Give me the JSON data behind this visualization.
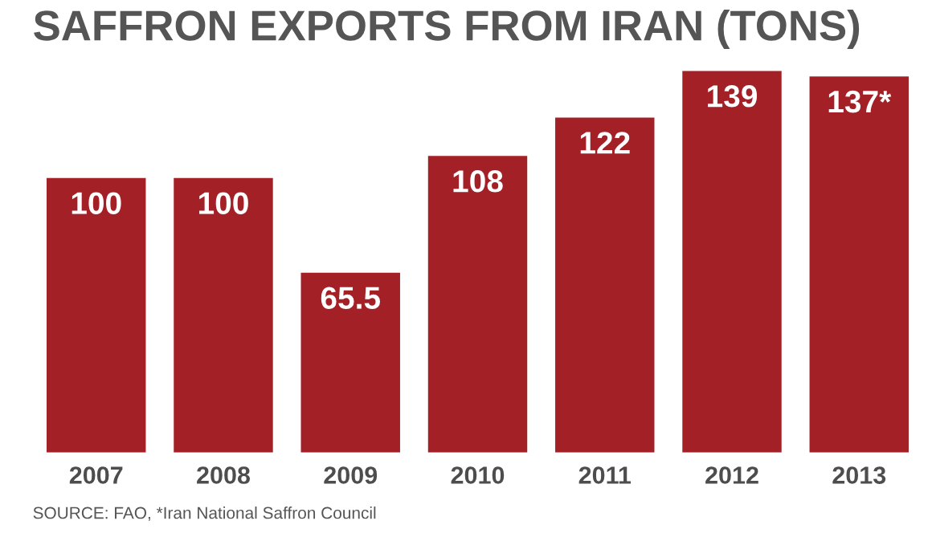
{
  "chart_data": {
    "type": "bar",
    "title": "SAFFRON EXPORTS FROM IRAN (TONS)",
    "categories": [
      "2007",
      "2008",
      "2009",
      "2010",
      "2011",
      "2012",
      "2013"
    ],
    "values": [
      100,
      100,
      65.5,
      108,
      122,
      139,
      137
    ],
    "value_labels": [
      "100",
      "100",
      "65.5",
      "108",
      "122",
      "139",
      "137*"
    ],
    "color": "#a32126",
    "annotations": [
      "SOURCE: FAO, *Iran National Saffron Council"
    ]
  }
}
